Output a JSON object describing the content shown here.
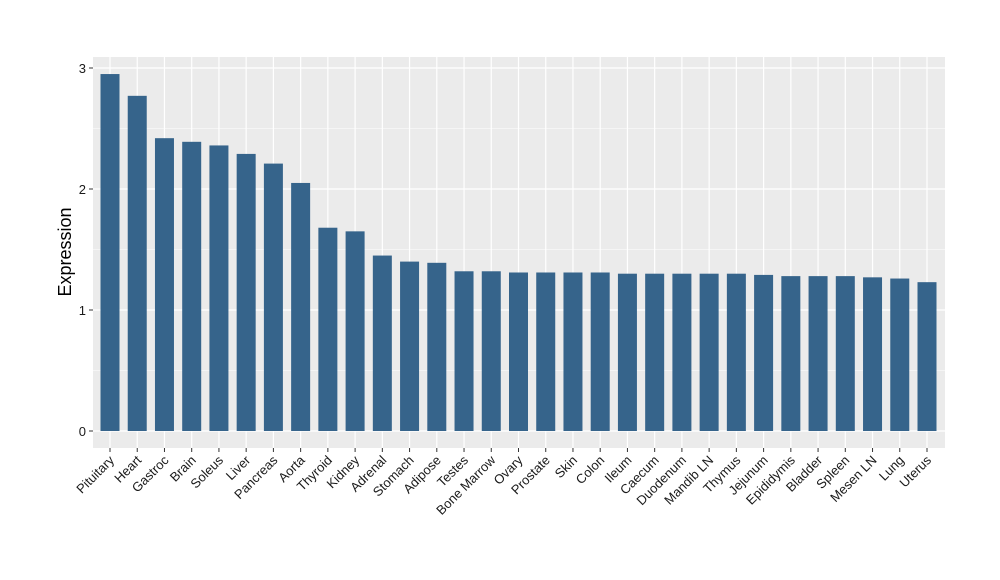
{
  "chart_data": {
    "type": "bar",
    "title": "",
    "xlabel": "",
    "ylabel": "Expression",
    "ylim": [
      -0.1,
      3.1
    ],
    "yticks": [
      0,
      1,
      2,
      3
    ],
    "grid": true,
    "bar_color": "#36648b",
    "panel_color": "#ebebeb",
    "categories": [
      "Pituitary",
      "Heart",
      "Gastroc",
      "Brain",
      "Soleus",
      "Liver",
      "Pancreas",
      "Aorta",
      "Thyroid",
      "Kidney",
      "Adrenal",
      "Stomach",
      "Adipose",
      "Testes",
      "Bone Marrow",
      "Ovary",
      "Prostate",
      "Skin",
      "Colon",
      "Ileum",
      "Caecum",
      "Duodenum",
      "Mandib LN",
      "Thymus",
      "Jejunum",
      "Epididymis",
      "Bladder",
      "Spleen",
      "Mesen LN",
      "Lung",
      "Uterus"
    ],
    "values": [
      2.95,
      2.77,
      2.42,
      2.39,
      2.36,
      2.29,
      2.21,
      2.05,
      1.68,
      1.65,
      1.45,
      1.4,
      1.39,
      1.32,
      1.32,
      1.31,
      1.31,
      1.31,
      1.31,
      1.3,
      1.3,
      1.3,
      1.3,
      1.3,
      1.29,
      1.28,
      1.28,
      1.28,
      1.27,
      1.26,
      1.23
    ]
  }
}
